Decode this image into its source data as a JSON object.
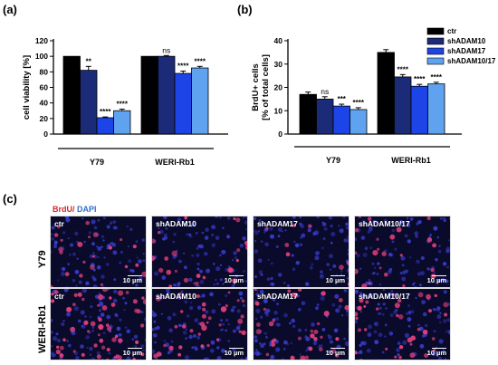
{
  "panels": {
    "a": "(a)",
    "b": "(b)",
    "c": "(c)"
  },
  "chart_data": [
    {
      "type": "bar",
      "ylabel": "cell viability [%]",
      "ylim": [
        0,
        120
      ],
      "yticks": [
        "0",
        "20",
        "40",
        "60",
        "80",
        "100",
        "120"
      ],
      "groups": [
        "Y79",
        "WERI-Rb1"
      ],
      "series": [
        {
          "name": "ctr",
          "color": "#000000",
          "values": [
            100,
            100
          ],
          "errors": [
            0,
            0
          ]
        },
        {
          "name": "shADAM10",
          "color": "#1c2b78",
          "values": [
            82,
            100
          ],
          "errors": [
            5,
            1
          ]
        },
        {
          "name": "shADAM17",
          "color": "#1d44e6",
          "values": [
            21,
            78
          ],
          "errors": [
            1,
            3
          ]
        },
        {
          "name": "shADAM10/17",
          "color": "#5fa2f0",
          "values": [
            30,
            85
          ],
          "errors": [
            2,
            2
          ]
        }
      ],
      "significance": [
        [
          "",
          "**",
          "****",
          "****"
        ],
        [
          "",
          "ns",
          "****",
          "****"
        ]
      ]
    },
    {
      "type": "bar",
      "ylabel_line1": "BrdU+ cells",
      "ylabel_line2": "[% of total cells]",
      "ylim": [
        0,
        40
      ],
      "yticks": [
        "0",
        "10",
        "20",
        "30",
        "40"
      ],
      "groups": [
        "Y79",
        "WERI-Rb1"
      ],
      "series": [
        {
          "name": "ctr",
          "color": "#000000",
          "values": [
            17,
            35
          ],
          "errors": [
            1,
            1.2
          ]
        },
        {
          "name": "shADAM10",
          "color": "#1c2b78",
          "values": [
            15,
            24.5
          ],
          "errors": [
            1,
            1
          ]
        },
        {
          "name": "shADAM17",
          "color": "#1d44e6",
          "values": [
            12,
            20.5
          ],
          "errors": [
            0.8,
            0.8
          ]
        },
        {
          "name": "shADAM10/17",
          "color": "#5fa2f0",
          "values": [
            10.5,
            21.5
          ],
          "errors": [
            0.8,
            0.7
          ]
        }
      ],
      "significance": [
        [
          "",
          "ns",
          "***",
          "****"
        ],
        [
          "",
          "****",
          "****",
          "****"
        ]
      ],
      "legend": {
        "position": "top-right",
        "items": [
          "ctr",
          "shADAM10",
          "shADAM17",
          "shADAM10/17"
        ]
      }
    }
  ],
  "microscopy": {
    "stain_red": "BrdU/",
    "stain_blue": " DAPI",
    "rows": [
      "Y79",
      "WERI-Rb1"
    ],
    "columns": [
      "ctr",
      "shADAM10",
      "shADAM17",
      "shADAM10/17"
    ],
    "scale_bar": "10 µm",
    "colors": {
      "background": "#0a0a2a",
      "nuclei": "#3b3fd8",
      "brdu": "#e0407a"
    }
  }
}
